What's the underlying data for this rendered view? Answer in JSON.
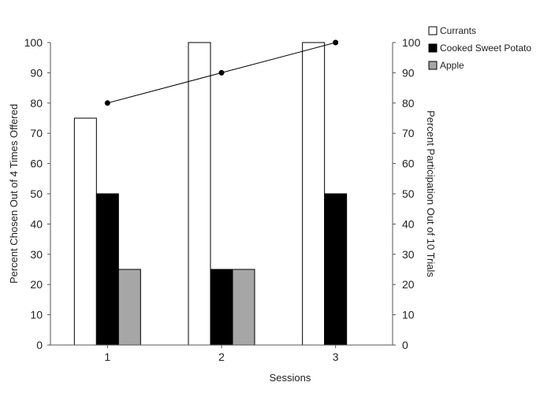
{
  "chart_data": {
    "type": "bar",
    "categories": [
      "1",
      "2",
      "3"
    ],
    "xlabel": "Sessions",
    "ylabel": "Percent Chosen Out of 4 Times Offered",
    "y2label": "Percent Participation Out of 10 Trials",
    "ylim": [
      0,
      100
    ],
    "y2lim": [
      0,
      100
    ],
    "yticks": [
      0,
      10,
      20,
      30,
      40,
      50,
      60,
      70,
      80,
      90,
      100
    ],
    "grid": false,
    "legend_position": "top-right",
    "series": [
      {
        "name": "Currants",
        "values": [
          75,
          100,
          100
        ],
        "color": "#ffffff",
        "edge": "#000000"
      },
      {
        "name": "Cooked Sweet Potato",
        "values": [
          50,
          25,
          50
        ],
        "color": "#000000",
        "edge": "#000000"
      },
      {
        "name": "Apple",
        "values": [
          25,
          25,
          0
        ],
        "color": "#a6a6a6",
        "edge": "#000000"
      }
    ],
    "line_series": {
      "axis": "right",
      "values": [
        80,
        90,
        100
      ],
      "color": "#000000",
      "marker": "circle"
    }
  }
}
